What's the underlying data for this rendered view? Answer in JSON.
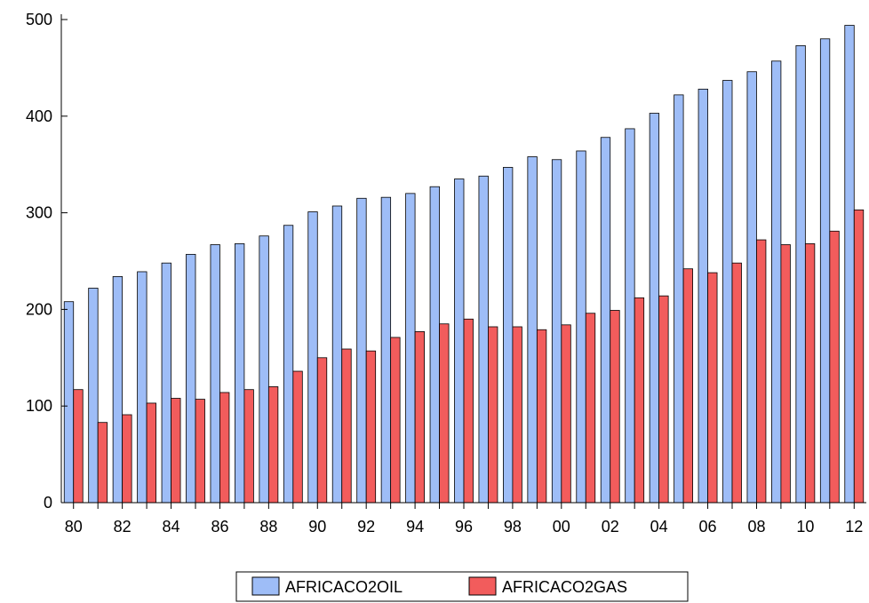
{
  "chart_data": {
    "type": "bar",
    "title": "",
    "xlabel": "",
    "ylabel": "",
    "ylim": [
      0,
      500
    ],
    "yticks": [
      0,
      100,
      200,
      300,
      400,
      500
    ],
    "categories": [
      "80",
      "81",
      "82",
      "83",
      "84",
      "85",
      "86",
      "87",
      "88",
      "89",
      "90",
      "91",
      "92",
      "93",
      "94",
      "95",
      "96",
      "97",
      "98",
      "99",
      "00",
      "01",
      "02",
      "03",
      "04",
      "05",
      "06",
      "07",
      "08",
      "09",
      "10",
      "11",
      "12"
    ],
    "xtick_labels": [
      "80",
      "82",
      "84",
      "86",
      "88",
      "90",
      "92",
      "94",
      "96",
      "98",
      "00",
      "02",
      "04",
      "06",
      "08",
      "10",
      "12"
    ],
    "grid": false,
    "legend_position": "bottom",
    "series": [
      {
        "name": "AFRICACO2OIL",
        "color": "#9ebdf7",
        "values": [
          208,
          222,
          234,
          239,
          248,
          257,
          267,
          268,
          276,
          287,
          301,
          307,
          315,
          316,
          320,
          327,
          335,
          338,
          347,
          358,
          355,
          364,
          378,
          387,
          403,
          422,
          428,
          437,
          446,
          457,
          473,
          480,
          494
        ]
      },
      {
        "name": "AFRICACO2GAS",
        "color": "#f25c5c",
        "values": [
          117,
          83,
          91,
          103,
          108,
          107,
          114,
          117,
          120,
          136,
          150,
          159,
          157,
          171,
          177,
          185,
          190,
          182,
          182,
          179,
          184,
          196,
          199,
          212,
          214,
          242,
          238,
          248,
          272,
          267,
          268,
          281,
          303
        ]
      }
    ]
  }
}
